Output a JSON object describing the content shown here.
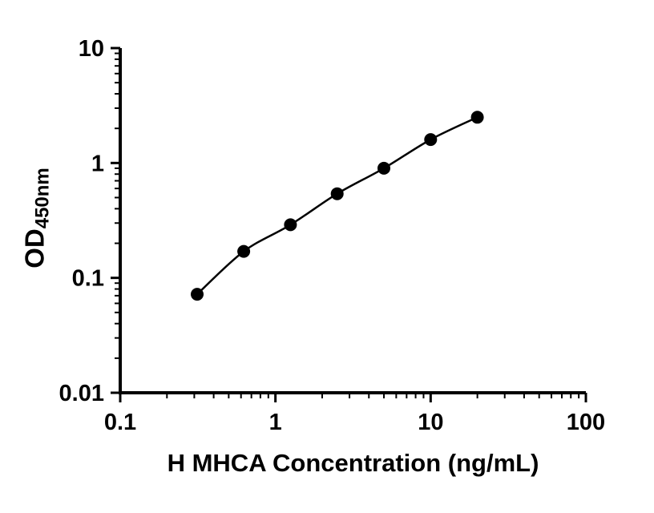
{
  "figure": {
    "background_color": "#ffffff",
    "foreground_color": "#000000"
  },
  "chart_data": {
    "type": "scatter",
    "x": [
      0.313,
      0.625,
      1.25,
      2.5,
      5,
      10,
      20
    ],
    "y": [
      0.072,
      0.17,
      0.29,
      0.54,
      0.9,
      1.6,
      2.5
    ],
    "title": "",
    "xlabel": "H MHCA Concentration (ng/mL)",
    "ylabel": "OD450nm",
    "ylabel_main": "OD",
    "ylabel_sub": "450nm",
    "xscale": "log",
    "yscale": "log",
    "xlim": [
      0.1,
      100
    ],
    "ylim": [
      0.01,
      10
    ],
    "x_tick_labels": [
      "0.1",
      "1",
      "10",
      "100"
    ],
    "x_tick_values": [
      0.1,
      1,
      10,
      100
    ],
    "y_tick_labels": [
      "0.01",
      "0.1",
      "1",
      "10"
    ],
    "y_tick_values": [
      0.01,
      0.1,
      1,
      10
    ],
    "grid": false,
    "legend": "none",
    "line": true,
    "marker": "filled-circle",
    "line_color": "#000000",
    "marker_color": "#000000"
  }
}
